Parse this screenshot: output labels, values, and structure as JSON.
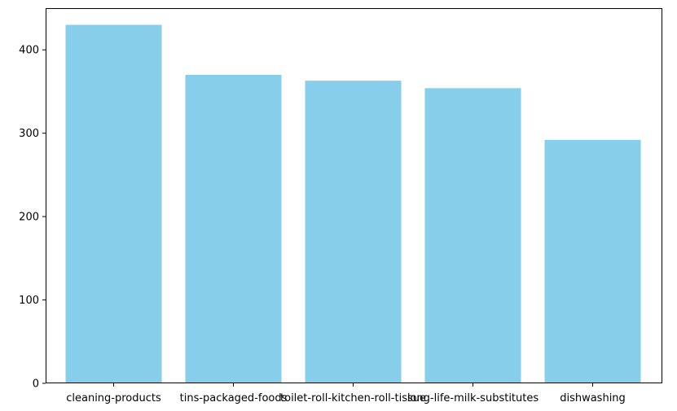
{
  "chart_data": {
    "type": "bar",
    "categories": [
      "cleaning-products",
      "tins-packaged-foods",
      "toilet-roll-kitchen-roll-tissue",
      "long-life-milk-substitutes",
      "dishwashing"
    ],
    "values": [
      430,
      370,
      363,
      354,
      292
    ],
    "ylim": [
      0,
      450
    ],
    "yticks": [
      0,
      100,
      200,
      300,
      400
    ],
    "bar_color": "#87CEEB",
    "grid": false,
    "title": "",
    "xlabel": "",
    "ylabel": ""
  }
}
